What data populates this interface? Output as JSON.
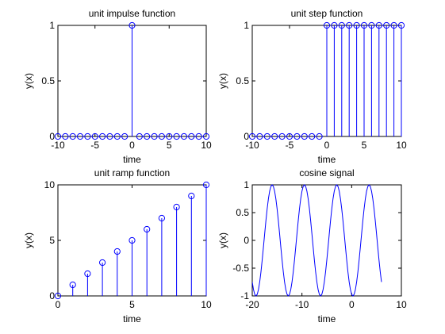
{
  "chart_data": [
    {
      "type": "stem",
      "title": "unit impulse function",
      "xlabel": "time",
      "ylabel": "y(x)",
      "xlim": [
        -10,
        10
      ],
      "ylim": [
        0,
        1
      ],
      "x_ticks": [
        -10,
        -5,
        0,
        5,
        10
      ],
      "y_ticks": [
        0,
        0.5,
        1
      ],
      "x": [
        -10,
        -9,
        -8,
        -7,
        -6,
        -5,
        -4,
        -3,
        -2,
        -1,
        0,
        1,
        2,
        3,
        4,
        5,
        6,
        7,
        8,
        9,
        10
      ],
      "y": [
        0,
        0,
        0,
        0,
        0,
        0,
        0,
        0,
        0,
        0,
        1,
        0,
        0,
        0,
        0,
        0,
        0,
        0,
        0,
        0,
        0
      ],
      "color": "#0000ff",
      "grid": false
    },
    {
      "type": "stem",
      "title": "unit step function",
      "xlabel": "time",
      "ylabel": "y(x)",
      "xlim": [
        -10,
        10
      ],
      "ylim": [
        0,
        1
      ],
      "x_ticks": [
        -10,
        -5,
        0,
        5,
        10
      ],
      "y_ticks": [
        0,
        0.5,
        1
      ],
      "x": [
        -10,
        -9,
        -8,
        -7,
        -6,
        -5,
        -4,
        -3,
        -2,
        -1,
        0,
        1,
        2,
        3,
        4,
        5,
        6,
        7,
        8,
        9,
        10
      ],
      "y": [
        0,
        0,
        0,
        0,
        0,
        0,
        0,
        0,
        0,
        0,
        1,
        1,
        1,
        1,
        1,
        1,
        1,
        1,
        1,
        1,
        1
      ],
      "color": "#0000ff",
      "grid": false
    },
    {
      "type": "stem",
      "title": "unit ramp function",
      "xlabel": "time",
      "ylabel": "y(x)",
      "xlim": [
        0,
        10
      ],
      "ylim": [
        0,
        10
      ],
      "x_ticks": [
        0,
        5,
        10
      ],
      "y_ticks": [
        0,
        5,
        10
      ],
      "x": [
        0,
        1,
        2,
        3,
        4,
        5,
        6,
        7,
        8,
        9,
        10
      ],
      "y": [
        0,
        1,
        2,
        3,
        4,
        5,
        6,
        7,
        8,
        9,
        10
      ],
      "color": "#0000ff",
      "grid": false
    },
    {
      "type": "line",
      "title": "cosine signal",
      "xlabel": "time",
      "ylabel": "y(x)",
      "xlim": [
        -20,
        10
      ],
      "ylim": [
        -1,
        1
      ],
      "x_ticks": [
        -20,
        -10,
        0,
        10
      ],
      "y_ticks": [
        -1,
        -0.5,
        0,
        0.5,
        1
      ],
      "x_range": [
        -20,
        6
      ],
      "x_step": 0.25,
      "function": "cos(2*pi*x/6.5 + 2*pi*3/6.5)",
      "color": "#0000ff",
      "grid": false
    }
  ]
}
